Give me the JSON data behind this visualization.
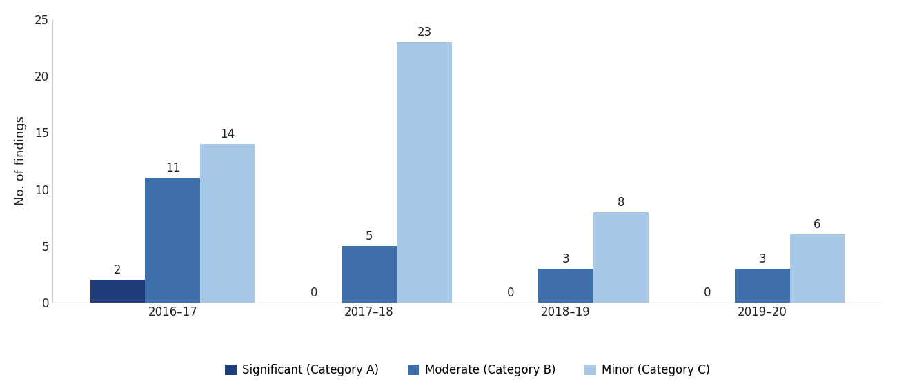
{
  "categories": [
    "2016–17",
    "2017–18",
    "2018–19",
    "2019–20"
  ],
  "significant": [
    2,
    0,
    0,
    0
  ],
  "moderate": [
    11,
    5,
    3,
    3
  ],
  "minor": [
    14,
    23,
    8,
    6
  ],
  "color_significant": "#1f3d7a",
  "color_moderate": "#3f6faa",
  "color_minor": "#a8c8e8",
  "ylabel": "No. of findings",
  "ylim": [
    0,
    25
  ],
  "yticks": [
    0,
    5,
    10,
    15,
    20,
    25
  ],
  "legend_labels": [
    "Significant (Category A)",
    "Moderate (Category B)",
    "Minor (Category C)"
  ],
  "bar_width": 0.28,
  "label_fontsize": 12,
  "tick_fontsize": 12,
  "ylabel_fontsize": 13,
  "legend_fontsize": 12,
  "background_color": "#ffffff"
}
